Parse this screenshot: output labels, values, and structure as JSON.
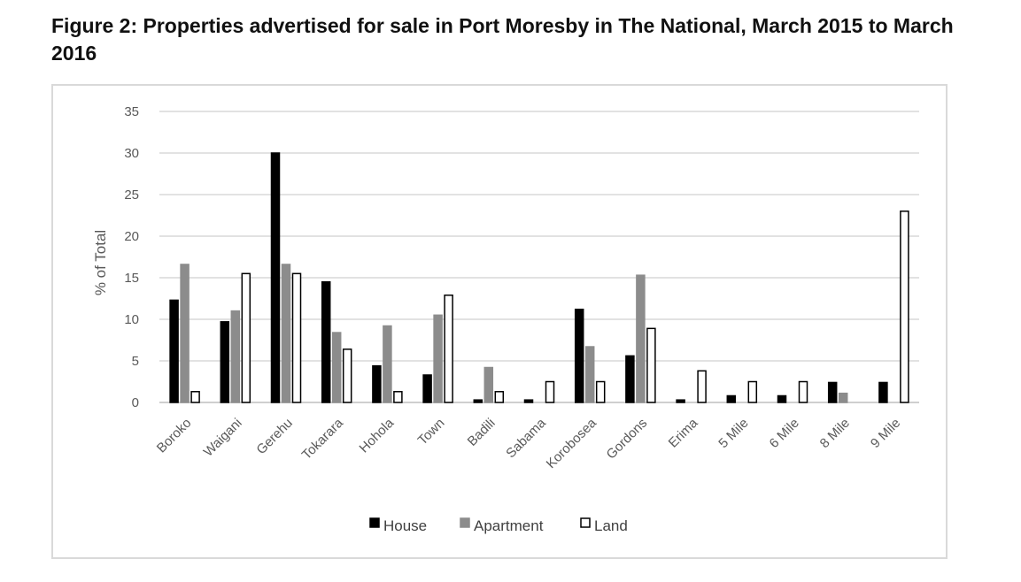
{
  "figure": {
    "title": "Figure 2: Properties advertised for sale in Port Moresby in The National, March 2015 to March 2016"
  },
  "chart_data": {
    "type": "bar",
    "title": "",
    "xlabel": "",
    "ylabel": "% of Total",
    "ylim": [
      0,
      35
    ],
    "yticks": [
      0,
      5,
      10,
      15,
      20,
      25,
      30,
      35
    ],
    "grid": true,
    "legend_position": "bottom",
    "categories": [
      "Boroko",
      "Waigani",
      "Gerehu",
      "Tokarara",
      "Hohola",
      "Town",
      "Badili",
      "Sabama",
      "Korobosea",
      "Gordons",
      "Erima",
      "5 Mile",
      "6 Mile",
      "8 Mile",
      "9 Mile"
    ],
    "series": [
      {
        "name": "House",
        "color": "#000000",
        "stroke": "#000000",
        "values": [
          12.3,
          9.7,
          30,
          14.5,
          4.4,
          3.3,
          0.3,
          0.3,
          11.2,
          5.6,
          0.3,
          0.8,
          0.8,
          2.4,
          2.4
        ]
      },
      {
        "name": "Apartment",
        "color": "#8c8c8c",
        "stroke": "#8c8c8c",
        "values": [
          16.6,
          11,
          16.6,
          8.4,
          9.2,
          10.5,
          4.2,
          0,
          6.7,
          15.3,
          0,
          0,
          0,
          1.1,
          0
        ]
      },
      {
        "name": "Land",
        "color": "#ffffff",
        "stroke": "#000000",
        "values": [
          1.3,
          15.5,
          15.5,
          6.4,
          1.3,
          12.9,
          1.3,
          2.5,
          2.5,
          8.9,
          3.8,
          2.5,
          2.5,
          0,
          23
        ]
      }
    ],
    "colors": {
      "grid": "#d9d9d9",
      "axis": "#bfbfbf",
      "text": "#595959"
    }
  }
}
